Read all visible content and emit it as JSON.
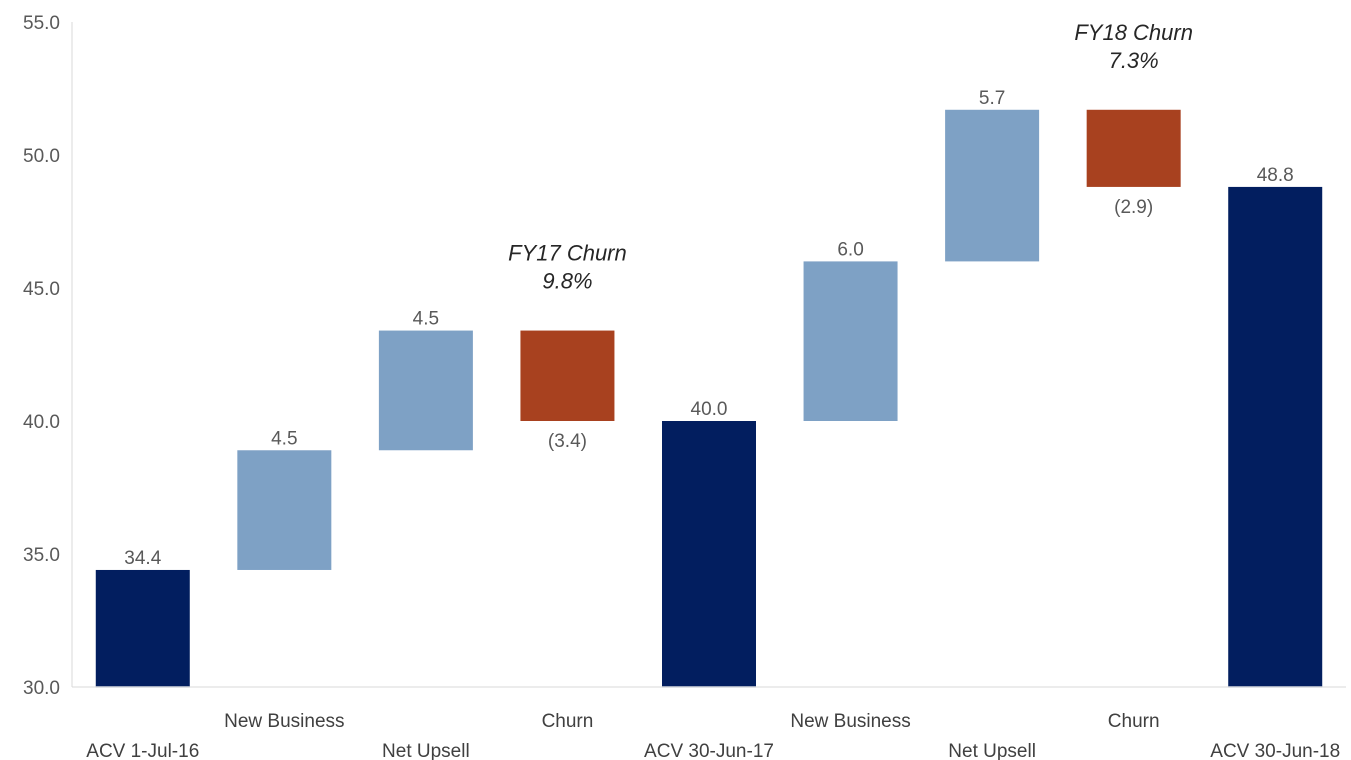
{
  "chart_data": {
    "type": "bar",
    "subtype": "waterfall",
    "title": "",
    "xlabel": "",
    "ylabel": "",
    "ylim": [
      30,
      55
    ],
    "yticks": [
      "30.0",
      "35.0",
      "40.0",
      "45.0",
      "50.0",
      "55.0"
    ],
    "grid": false,
    "categories": [
      "ACV 1-Jul-16",
      "New Business",
      "Net Upsell",
      "Churn",
      "ACV 30-Jun-17",
      "New Business",
      "Net Upsell",
      "Churn",
      "ACV 30-Jun-18"
    ],
    "bars": [
      {
        "category": "ACV 1-Jul-16",
        "kind": "total",
        "start": 30,
        "end": 34.4,
        "label": "34.4"
      },
      {
        "category": "New Business",
        "kind": "increase",
        "start": 34.4,
        "end": 38.9,
        "label": "4.5"
      },
      {
        "category": "Net Upsell",
        "kind": "increase",
        "start": 38.9,
        "end": 43.4,
        "label": "4.5"
      },
      {
        "category": "Churn",
        "kind": "decrease",
        "start": 43.4,
        "end": 40.0,
        "label": "(3.4)"
      },
      {
        "category": "ACV 30-Jun-17",
        "kind": "total",
        "start": 30,
        "end": 40.0,
        "label": "40.0"
      },
      {
        "category": "New Business",
        "kind": "increase",
        "start": 40.0,
        "end": 46.0,
        "label": "6.0"
      },
      {
        "category": "Net Upsell",
        "kind": "increase",
        "start": 46.0,
        "end": 51.7,
        "label": "5.7"
      },
      {
        "category": "Churn",
        "kind": "decrease",
        "start": 51.7,
        "end": 48.8,
        "label": "(2.9)"
      },
      {
        "category": "ACV 30-Jun-18",
        "kind": "total",
        "start": 30,
        "end": 48.8,
        "label": "48.8"
      }
    ],
    "annotations": [
      {
        "bar_index": 3,
        "lines": [
          "FY17 Churn",
          "9.8%"
        ]
      },
      {
        "bar_index": 7,
        "lines": [
          "FY18 Churn",
          "7.3%"
        ]
      }
    ],
    "colors": {
      "total": "#021e5f",
      "increase": "#7ea1c5",
      "decrease": "#a8411f",
      "axis": "#d9d9d9"
    }
  }
}
